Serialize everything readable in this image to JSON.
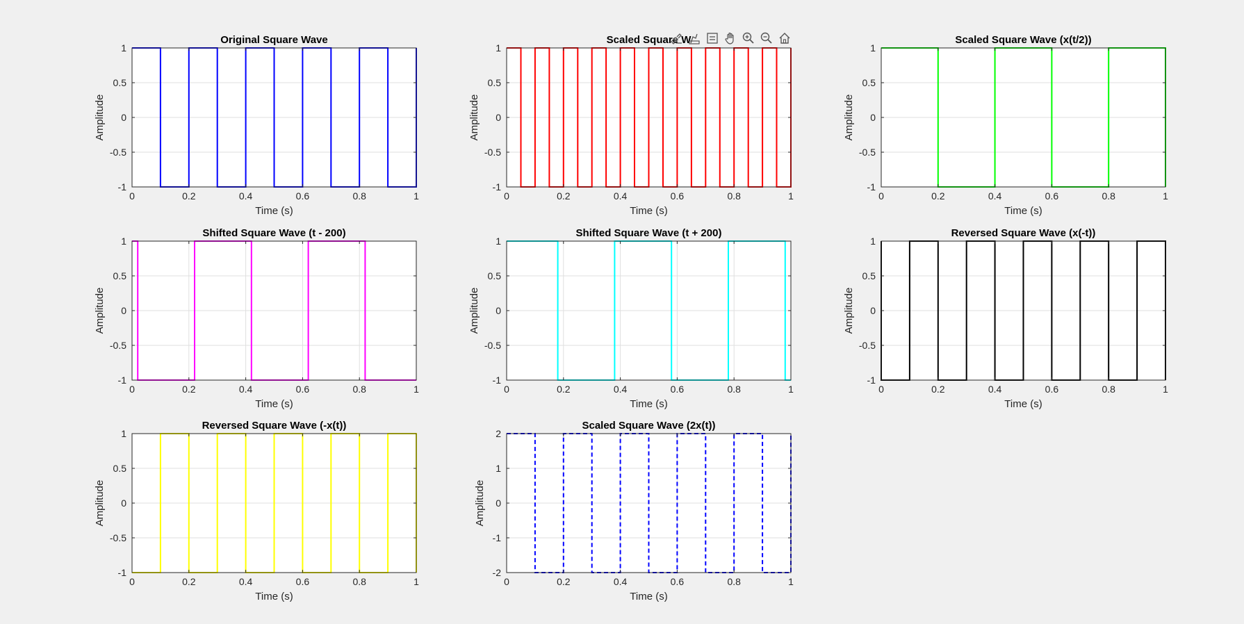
{
  "figure": {
    "background": "#f0f0f0",
    "toolbar_icons": [
      "brush-edit-icon",
      "data-tips-icon",
      "legend-icon",
      "pan-hand-icon",
      "zoom-in-icon",
      "zoom-out-icon",
      "home-icon"
    ]
  },
  "chart_data": [
    {
      "type": "line",
      "title": "Original Square Wave",
      "xlabel": "Time (s)",
      "ylabel": "Amplitude",
      "xlim": [
        0,
        1
      ],
      "ylim": [
        -1,
        1
      ],
      "xticks": [
        0,
        0.2,
        0.4,
        0.6,
        0.8,
        1
      ],
      "xtick_labels": [
        "0",
        "0.2",
        "0.4",
        "0.6",
        "0.8",
        "1"
      ],
      "yticks": [
        -1,
        -0.5,
        0,
        0.5,
        1
      ],
      "ytick_labels": [
        "-1",
        "-0.5",
        "0",
        "0.5",
        "1"
      ],
      "grid": true,
      "series": [
        {
          "color": "#0000ff",
          "style": "solid",
          "x": [
            0,
            0.1,
            0.1,
            0.2,
            0.2,
            0.3,
            0.3,
            0.4,
            0.4,
            0.5,
            0.5,
            0.6,
            0.6,
            0.7,
            0.7,
            0.8,
            0.8,
            0.9,
            0.9,
            1,
            1
          ],
          "y": [
            1,
            1,
            -1,
            -1,
            1,
            1,
            -1,
            -1,
            1,
            1,
            -1,
            -1,
            1,
            1,
            -1,
            -1,
            1,
            1,
            -1,
            -1,
            1
          ]
        }
      ]
    },
    {
      "type": "line",
      "title": "Scaled Square W",
      "xlabel": "Time (s)",
      "ylabel": "Amplitude",
      "xlim": [
        0,
        1
      ],
      "ylim": [
        -1,
        1
      ],
      "xticks": [
        0,
        0.2,
        0.4,
        0.6,
        0.8,
        1
      ],
      "xtick_labels": [
        "0",
        "0.2",
        "0.4",
        "0.6",
        "0.8",
        "1"
      ],
      "yticks": [
        -1,
        -0.5,
        0,
        0.5,
        1
      ],
      "ytick_labels": [
        "-1",
        "-0.5",
        "0",
        "0.5",
        "1"
      ],
      "grid": true,
      "series": [
        {
          "color": "#ff0000",
          "style": "solid",
          "x": [
            0,
            0.05,
            0.05,
            0.1,
            0.1,
            0.15,
            0.15,
            0.2,
            0.2,
            0.25,
            0.25,
            0.3,
            0.3,
            0.35,
            0.35,
            0.4,
            0.4,
            0.45,
            0.45,
            0.5,
            0.5,
            0.55,
            0.55,
            0.6,
            0.6,
            0.65,
            0.65,
            0.7,
            0.7,
            0.75,
            0.75,
            0.8,
            0.8,
            0.85,
            0.85,
            0.9,
            0.9,
            0.95,
            0.95,
            1,
            1
          ],
          "y": [
            1,
            1,
            -1,
            -1,
            1,
            1,
            -1,
            -1,
            1,
            1,
            -1,
            -1,
            1,
            1,
            -1,
            -1,
            1,
            1,
            -1,
            -1,
            1,
            1,
            -1,
            -1,
            1,
            1,
            -1,
            -1,
            1,
            1,
            -1,
            -1,
            1,
            1,
            -1,
            -1,
            1,
            1,
            -1,
            -1,
            1
          ]
        }
      ]
    },
    {
      "type": "line",
      "title": "Scaled Square Wave (x(t/2))",
      "xlabel": "Time (s)",
      "ylabel": "Amplitude",
      "xlim": [
        0,
        1
      ],
      "ylim": [
        -1,
        1
      ],
      "xticks": [
        0,
        0.2,
        0.4,
        0.6,
        0.8,
        1
      ],
      "xtick_labels": [
        "0",
        "0.2",
        "0.4",
        "0.6",
        "0.8",
        "1"
      ],
      "yticks": [
        -1,
        -0.5,
        0,
        0.5,
        1
      ],
      "ytick_labels": [
        "-1",
        "-0.5",
        "0",
        "0.5",
        "1"
      ],
      "grid": true,
      "series": [
        {
          "color": "#00ff00",
          "style": "solid",
          "x": [
            0,
            0.2,
            0.2,
            0.4,
            0.4,
            0.6,
            0.6,
            0.8,
            0.8,
            1,
            1
          ],
          "y": [
            1,
            1,
            -1,
            -1,
            1,
            1,
            -1,
            -1,
            1,
            1,
            -1
          ]
        }
      ]
    },
    {
      "type": "line",
      "title": "Shifted Square Wave (t - 200)",
      "xlabel": "Time (s)",
      "ylabel": "Amplitude",
      "xlim": [
        0,
        1
      ],
      "ylim": [
        -1,
        1
      ],
      "xticks": [
        0,
        0.2,
        0.4,
        0.6,
        0.8,
        1
      ],
      "xtick_labels": [
        "0",
        "0.2",
        "0.4",
        "0.6",
        "0.8",
        "1"
      ],
      "yticks": [
        -1,
        -0.5,
        0,
        0.5,
        1
      ],
      "ytick_labels": [
        "-1",
        "-0.5",
        "0",
        "0.5",
        "1"
      ],
      "grid": true,
      "series": [
        {
          "color": "#ff00ff",
          "style": "solid",
          "x": [
            0,
            0.02,
            0.02,
            0.22,
            0.22,
            0.42,
            0.42,
            0.62,
            0.62,
            0.82,
            0.82,
            1
          ],
          "y": [
            1,
            1,
            -1,
            -1,
            1,
            1,
            -1,
            -1,
            1,
            1,
            -1,
            -1
          ]
        }
      ]
    },
    {
      "type": "line",
      "title": "Shifted Square Wave (t + 200)",
      "xlabel": "Time (s)",
      "ylabel": "Amplitude",
      "xlim": [
        0,
        1
      ],
      "ylim": [
        -1,
        1
      ],
      "xticks": [
        0,
        0.2,
        0.4,
        0.6,
        0.8,
        1
      ],
      "xtick_labels": [
        "0",
        "0.2",
        "0.4",
        "0.6",
        "0.8",
        "1"
      ],
      "yticks": [
        -1,
        -0.5,
        0,
        0.5,
        1
      ],
      "ytick_labels": [
        "-1",
        "-0.5",
        "0",
        "0.5",
        "1"
      ],
      "grid": true,
      "series": [
        {
          "color": "#00ffff",
          "style": "solid",
          "x": [
            0,
            0.18,
            0.18,
            0.38,
            0.38,
            0.58,
            0.58,
            0.78,
            0.78,
            0.98,
            0.98,
            1
          ],
          "y": [
            1,
            1,
            -1,
            -1,
            1,
            1,
            -1,
            -1,
            1,
            1,
            -1,
            -1
          ]
        }
      ]
    },
    {
      "type": "line",
      "title": "Reversed Square Wave (x(-t))",
      "xlabel": "Time (s)",
      "ylabel": "Amplitude",
      "xlim": [
        0,
        1
      ],
      "ylim": [
        -1,
        1
      ],
      "xticks": [
        0,
        0.2,
        0.4,
        0.6,
        0.8,
        1
      ],
      "xtick_labels": [
        "0",
        "0.2",
        "0.4",
        "0.6",
        "0.8",
        "1"
      ],
      "yticks": [
        -1,
        -0.5,
        0,
        0.5,
        1
      ],
      "ytick_labels": [
        "-1",
        "-0.5",
        "0",
        "0.5",
        "1"
      ],
      "grid": true,
      "series": [
        {
          "color": "#000000",
          "style": "solid",
          "x": [
            0,
            0,
            0.1,
            0.1,
            0.2,
            0.2,
            0.3,
            0.3,
            0.4,
            0.4,
            0.5,
            0.5,
            0.6,
            0.6,
            0.7,
            0.7,
            0.8,
            0.8,
            0.9,
            0.9,
            1,
            1
          ],
          "y": [
            1,
            -1,
            -1,
            1,
            1,
            -1,
            -1,
            1,
            1,
            -1,
            -1,
            1,
            1,
            -1,
            -1,
            1,
            1,
            -1,
            -1,
            1,
            1,
            -1
          ]
        }
      ]
    },
    {
      "type": "line",
      "title": "Reversed Square Wave (-x(t))",
      "xlabel": "Time (s)",
      "ylabel": "Amplitude",
      "xlim": [
        0,
        1
      ],
      "ylim": [
        -1,
        1
      ],
      "xticks": [
        0,
        0.2,
        0.4,
        0.6,
        0.8,
        1
      ],
      "xtick_labels": [
        "0",
        "0.2",
        "0.4",
        "0.6",
        "0.8",
        "1"
      ],
      "yticks": [
        -1,
        -0.5,
        0,
        0.5,
        1
      ],
      "ytick_labels": [
        "-1",
        "-0.5",
        "0",
        "0.5",
        "1"
      ],
      "grid": true,
      "series": [
        {
          "color": "#ffff00",
          "style": "solid",
          "x": [
            0,
            0.1,
            0.1,
            0.2,
            0.2,
            0.3,
            0.3,
            0.4,
            0.4,
            0.5,
            0.5,
            0.6,
            0.6,
            0.7,
            0.7,
            0.8,
            0.8,
            0.9,
            0.9,
            1,
            1
          ],
          "y": [
            -1,
            -1,
            1,
            1,
            -1,
            -1,
            1,
            1,
            -1,
            -1,
            1,
            1,
            -1,
            -1,
            1,
            1,
            -1,
            -1,
            1,
            1,
            -1
          ]
        }
      ]
    },
    {
      "type": "line",
      "title": "Scaled Square Wave (2x(t))",
      "xlabel": "Time (s)",
      "ylabel": "Amplitude",
      "xlim": [
        0,
        1
      ],
      "ylim": [
        -2,
        2
      ],
      "xticks": [
        0,
        0.2,
        0.4,
        0.6,
        0.8,
        1
      ],
      "xtick_labels": [
        "0",
        "0.2",
        "0.4",
        "0.6",
        "0.8",
        "1"
      ],
      "yticks": [
        -2,
        -1,
        0,
        1,
        2
      ],
      "ytick_labels": [
        "-2",
        "-1",
        "0",
        "1",
        "2"
      ],
      "grid": true,
      "series": [
        {
          "color": "#0000ff",
          "style": "dashed",
          "x": [
            0,
            0.1,
            0.1,
            0.2,
            0.2,
            0.3,
            0.3,
            0.4,
            0.4,
            0.5,
            0.5,
            0.6,
            0.6,
            0.7,
            0.7,
            0.8,
            0.8,
            0.9,
            0.9,
            1,
            1
          ],
          "y": [
            2,
            2,
            -2,
            -2,
            2,
            2,
            -2,
            -2,
            2,
            2,
            -2,
            -2,
            2,
            2,
            -2,
            -2,
            2,
            2,
            -2,
            -2,
            2
          ]
        }
      ]
    }
  ]
}
